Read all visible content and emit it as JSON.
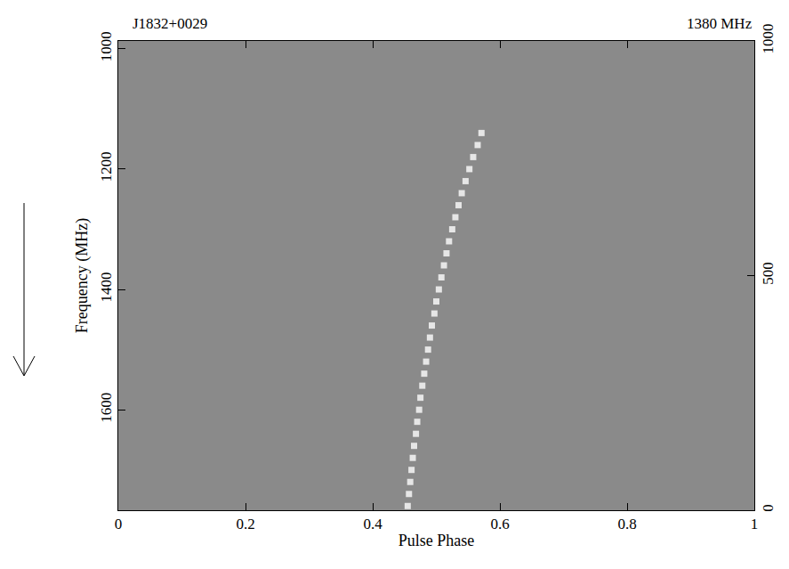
{
  "chart_data": {
    "type": "scatter",
    "title": "J1832+0029",
    "subtitle": "1380 MHz",
    "x_label": "Pulse Phase",
    "y_label": "Frequency (MHz)",
    "xlim": [
      0,
      1
    ],
    "xticks": [
      0,
      0.2,
      0.4,
      0.6,
      0.8,
      1
    ],
    "ylim": [
      1767,
      987
    ],
    "yticks": [
      1000,
      1200,
      1400,
      1600
    ],
    "y2lim": [
      0,
      1000
    ],
    "y2ticks": [
      0,
      500,
      1000
    ],
    "grid": false,
    "series": [
      {
        "color": "#e6e6e6",
        "marker": "square",
        "x": [
          0.571,
          0.565,
          0.558,
          0.552,
          0.546,
          0.54,
          0.535,
          0.53,
          0.525,
          0.52,
          0.516,
          0.512,
          0.508,
          0.504,
          0.5,
          0.497,
          0.493,
          0.49,
          0.487,
          0.484,
          0.481,
          0.478,
          0.475,
          0.473,
          0.47,
          0.468,
          0.465,
          0.463,
          0.461,
          0.459,
          0.457,
          0.455
        ],
        "y": [
          1140,
          1160,
          1180,
          1200,
          1220,
          1240,
          1260,
          1280,
          1300,
          1320,
          1340,
          1360,
          1380,
          1400,
          1420,
          1440,
          1460,
          1480,
          1500,
          1520,
          1540,
          1560,
          1580,
          1600,
          1620,
          1640,
          1660,
          1680,
          1700,
          1720,
          1740,
          1760
        ]
      }
    ]
  }
}
